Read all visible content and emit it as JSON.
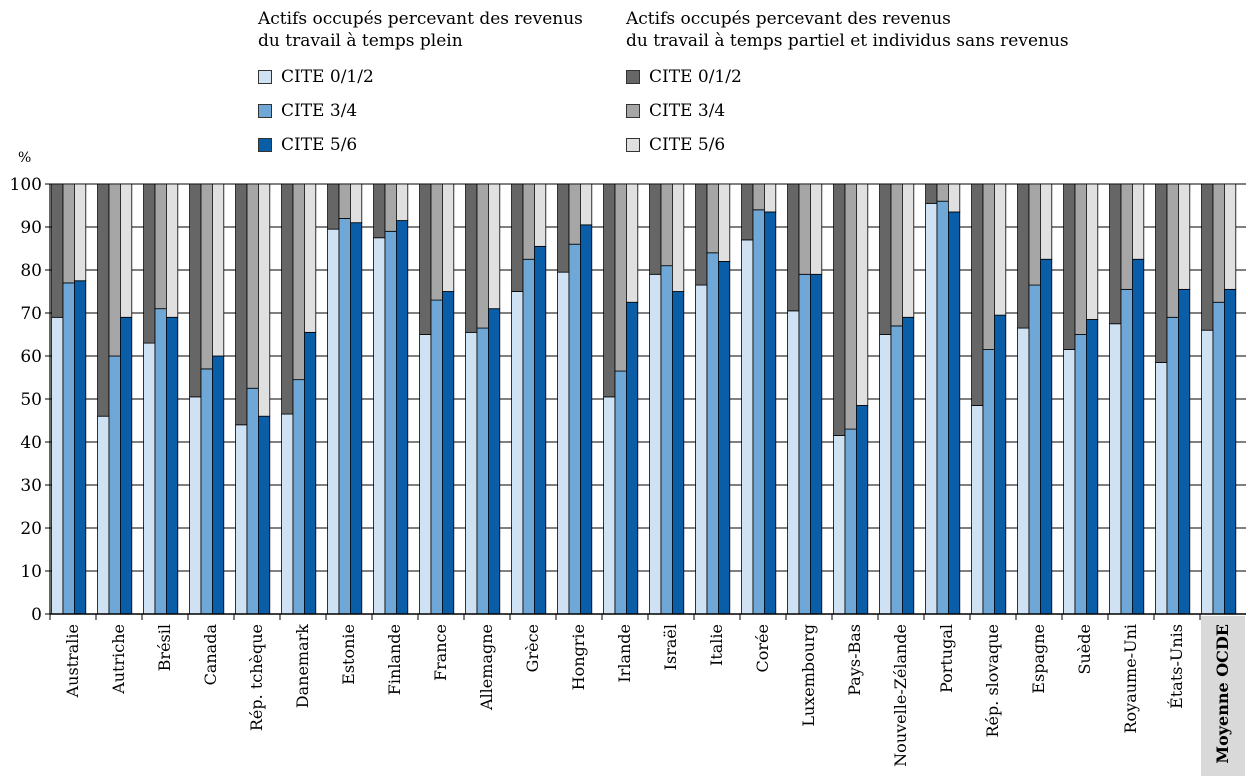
{
  "chart_data": {
    "type": "bar",
    "stacked": true,
    "y_unit_label": "%",
    "ylim": [
      0,
      100
    ],
    "yticks": [
      0,
      10,
      20,
      30,
      40,
      50,
      60,
      70,
      80,
      90,
      100
    ],
    "grid": true,
    "legend_position": "top",
    "legend_groups": [
      {
        "title_lines": [
          "Actifs occupés percevant des revenus",
          "du travail à temps plein"
        ],
        "entries": [
          {
            "label": "CITE 0/1/2",
            "color": "#cfe2f3"
          },
          {
            "label": "CITE 3/4",
            "color": "#6fa8d6"
          },
          {
            "label": "CITE 5/6",
            "color": "#0a5ea8"
          }
        ]
      },
      {
        "title_lines": [
          "Actifs occupés percevant des revenus",
          "du travail à temps partiel et individus sans revenus"
        ],
        "entries": [
          {
            "label": "CITE 0/1/2",
            "color": "#666666"
          },
          {
            "label": "CITE 3/4",
            "color": "#a6a6a6"
          },
          {
            "label": "CITE 5/6",
            "color": "#e0e0e0"
          }
        ]
      }
    ],
    "categories": [
      "Australie",
      "Autriche",
      "Brésil",
      "Canada",
      "Rép. tchèque",
      "Danemark",
      "Estonie",
      "Finlande",
      "France",
      "Allemagne",
      "Grèce",
      "Hongrie",
      "Irlande",
      "Israël",
      "Italie",
      "Corée",
      "Luxembourg",
      "Pays-Bas",
      "Nouvelle-Zélande",
      "Portugal",
      "Rép. slovaque",
      "Espagne",
      "Suède",
      "Royaume-Uni",
      "États-Unis",
      "Moyenne OCDE"
    ],
    "highlight_category": "Moyenne OCDE",
    "series": [
      {
        "name": "CITE 0/1/2",
        "full_time_values": [
          69,
          46,
          63,
          50.5,
          44,
          46.5,
          89.5,
          87.5,
          65,
          65.5,
          75,
          79.5,
          50.5,
          79,
          76.5,
          87,
          70.5,
          41.5,
          65,
          95.5,
          48.5,
          66.5,
          61.5,
          67.5,
          58.5,
          66
        ]
      },
      {
        "name": "CITE 3/4",
        "full_time_values": [
          77,
          60,
          71,
          57,
          52.5,
          54.5,
          92,
          89,
          73,
          66.5,
          82.5,
          86,
          56.5,
          81,
          84,
          94,
          79,
          43,
          67,
          96,
          61.5,
          76.5,
          65,
          75.5,
          69,
          72.5
        ]
      },
      {
        "name": "CITE 5/6",
        "full_time_values": [
          77.5,
          69,
          69,
          60,
          46,
          65.5,
          91,
          91.5,
          75,
          71,
          85.5,
          90.5,
          72.5,
          75,
          82,
          93.5,
          79,
          48.5,
          69,
          93.5,
          69.5,
          82.5,
          68.5,
          82.5,
          75.5,
          75.5
        ]
      }
    ]
  }
}
